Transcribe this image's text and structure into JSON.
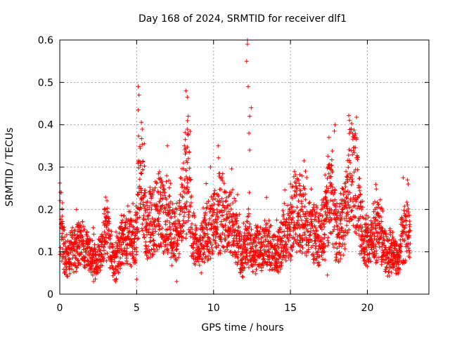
{
  "chart_data": {
    "type": "scatter",
    "title": "Day 168 of 2024, SRMTID for receiver dlf1",
    "xlabel": "GPS time / hours",
    "ylabel": "SRMTID / TECUs",
    "xlim": [
      0,
      24
    ],
    "ylim": [
      0,
      0.6
    ],
    "xticks": [
      "0",
      "5",
      "10",
      "15",
      "20"
    ],
    "yticks": [
      "0",
      "0.1",
      "0.2",
      "0.3",
      "0.4",
      "0.5",
      "0.6"
    ],
    "grid": true,
    "marker": "+",
    "color": "#ff0000",
    "series": [
      {
        "name": "SRMTID",
        "profile": [
          {
            "x": 0.0,
            "y": 0.18
          },
          {
            "x": 0.1,
            "y": 0.14
          },
          {
            "x": 0.3,
            "y": 0.1
          },
          {
            "x": 0.6,
            "y": 0.09
          },
          {
            "x": 1.0,
            "y": 0.11
          },
          {
            "x": 1.5,
            "y": 0.12
          },
          {
            "x": 2.0,
            "y": 0.09
          },
          {
            "x": 2.4,
            "y": 0.07
          },
          {
            "x": 2.8,
            "y": 0.11
          },
          {
            "x": 3.0,
            "y": 0.16
          },
          {
            "x": 3.3,
            "y": 0.1
          },
          {
            "x": 3.6,
            "y": 0.07
          },
          {
            "x": 4.0,
            "y": 0.12
          },
          {
            "x": 4.5,
            "y": 0.14
          },
          {
            "x": 4.9,
            "y": 0.1
          },
          {
            "x": 5.1,
            "y": 0.22
          },
          {
            "x": 5.3,
            "y": 0.28
          },
          {
            "x": 5.6,
            "y": 0.15
          },
          {
            "x": 6.0,
            "y": 0.17
          },
          {
            "x": 6.5,
            "y": 0.2
          },
          {
            "x": 7.0,
            "y": 0.17
          },
          {
            "x": 7.5,
            "y": 0.13
          },
          {
            "x": 8.0,
            "y": 0.22
          },
          {
            "x": 8.3,
            "y": 0.28
          },
          {
            "x": 8.6,
            "y": 0.15
          },
          {
            "x": 9.0,
            "y": 0.09
          },
          {
            "x": 9.5,
            "y": 0.14
          },
          {
            "x": 10.0,
            "y": 0.17
          },
          {
            "x": 10.5,
            "y": 0.2
          },
          {
            "x": 11.0,
            "y": 0.18
          },
          {
            "x": 11.5,
            "y": 0.14
          },
          {
            "x": 11.9,
            "y": 0.07
          },
          {
            "x": 12.2,
            "y": 0.14
          },
          {
            "x": 12.5,
            "y": 0.1
          },
          {
            "x": 13.0,
            "y": 0.11
          },
          {
            "x": 13.5,
            "y": 0.12
          },
          {
            "x": 14.0,
            "y": 0.09
          },
          {
            "x": 14.5,
            "y": 0.13
          },
          {
            "x": 15.0,
            "y": 0.15
          },
          {
            "x": 15.3,
            "y": 0.21
          },
          {
            "x": 15.8,
            "y": 0.18
          },
          {
            "x": 16.3,
            "y": 0.15
          },
          {
            "x": 16.8,
            "y": 0.13
          },
          {
            "x": 17.2,
            "y": 0.16
          },
          {
            "x": 17.6,
            "y": 0.25
          },
          {
            "x": 18.0,
            "y": 0.14
          },
          {
            "x": 18.5,
            "y": 0.18
          },
          {
            "x": 18.9,
            "y": 0.29
          },
          {
            "x": 19.3,
            "y": 0.27
          },
          {
            "x": 19.6,
            "y": 0.15
          },
          {
            "x": 20.0,
            "y": 0.12
          },
          {
            "x": 20.4,
            "y": 0.13
          },
          {
            "x": 20.8,
            "y": 0.17
          },
          {
            "x": 21.2,
            "y": 0.09
          },
          {
            "x": 21.6,
            "y": 0.1
          },
          {
            "x": 22.0,
            "y": 0.08
          },
          {
            "x": 22.3,
            "y": 0.14
          },
          {
            "x": 22.6,
            "y": 0.16
          },
          {
            "x": 22.8,
            "y": 0.12
          }
        ],
        "spikes": [
          {
            "x": 0.1,
            "y": 0.24
          },
          {
            "x": 3.0,
            "y": 0.2
          },
          {
            "x": 5.1,
            "y": 0.49
          },
          {
            "x": 5.15,
            "y": 0.47
          },
          {
            "x": 5.1,
            "y": 0.435
          },
          {
            "x": 5.5,
            "y": 0.355
          },
          {
            "x": 7.0,
            "y": 0.35
          },
          {
            "x": 8.2,
            "y": 0.48
          },
          {
            "x": 8.3,
            "y": 0.465
          },
          {
            "x": 8.35,
            "y": 0.42
          },
          {
            "x": 8.1,
            "y": 0.35
          },
          {
            "x": 10.3,
            "y": 0.35
          },
          {
            "x": 9.8,
            "y": 0.3
          },
          {
            "x": 12.2,
            "y": 0.6
          },
          {
            "x": 12.2,
            "y": 0.59
          },
          {
            "x": 12.15,
            "y": 0.55
          },
          {
            "x": 12.25,
            "y": 0.49
          },
          {
            "x": 12.45,
            "y": 0.44
          },
          {
            "x": 12.35,
            "y": 0.42
          },
          {
            "x": 12.3,
            "y": 0.38
          },
          {
            "x": 12.35,
            "y": 0.34
          },
          {
            "x": 15.0,
            "y": 0.26
          },
          {
            "x": 17.5,
            "y": 0.37
          },
          {
            "x": 17.9,
            "y": 0.4
          },
          {
            "x": 17.85,
            "y": 0.385
          },
          {
            "x": 18.95,
            "y": 0.39
          },
          {
            "x": 19.1,
            "y": 0.37
          },
          {
            "x": 22.6,
            "y": 0.27
          },
          {
            "x": 22.65,
            "y": 0.26
          },
          {
            "x": 7.6,
            "y": 0.03
          },
          {
            "x": 2.2,
            "y": 0.03
          },
          {
            "x": 5.0,
            "y": 0.035
          },
          {
            "x": 17.4,
            "y": 0.045
          }
        ]
      }
    ]
  }
}
